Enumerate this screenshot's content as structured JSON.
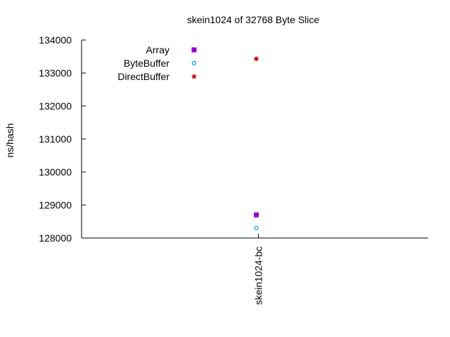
{
  "chart_data": {
    "type": "scatter",
    "title": "skein1024 of 32768 Byte Slice",
    "ylabel": "ns/hash",
    "xlabel": "",
    "categories": [
      "skein1024-bc"
    ],
    "ylim": [
      128000,
      134000
    ],
    "yticks": [
      128000,
      129000,
      130000,
      131000,
      132000,
      133000,
      134000
    ],
    "grid": false,
    "legend_position": "top-left",
    "series": [
      {
        "name": "Array",
        "marker": "filled-square",
        "color": "#9400d3",
        "values": [
          128700
        ]
      },
      {
        "name": "ByteBuffer",
        "marker": "open-circle",
        "color": "#009ee0",
        "values": [
          128300
        ]
      },
      {
        "name": "DirectBuffer",
        "marker": "asterisk",
        "color": "#c00000",
        "values": [
          133430
        ]
      }
    ]
  }
}
